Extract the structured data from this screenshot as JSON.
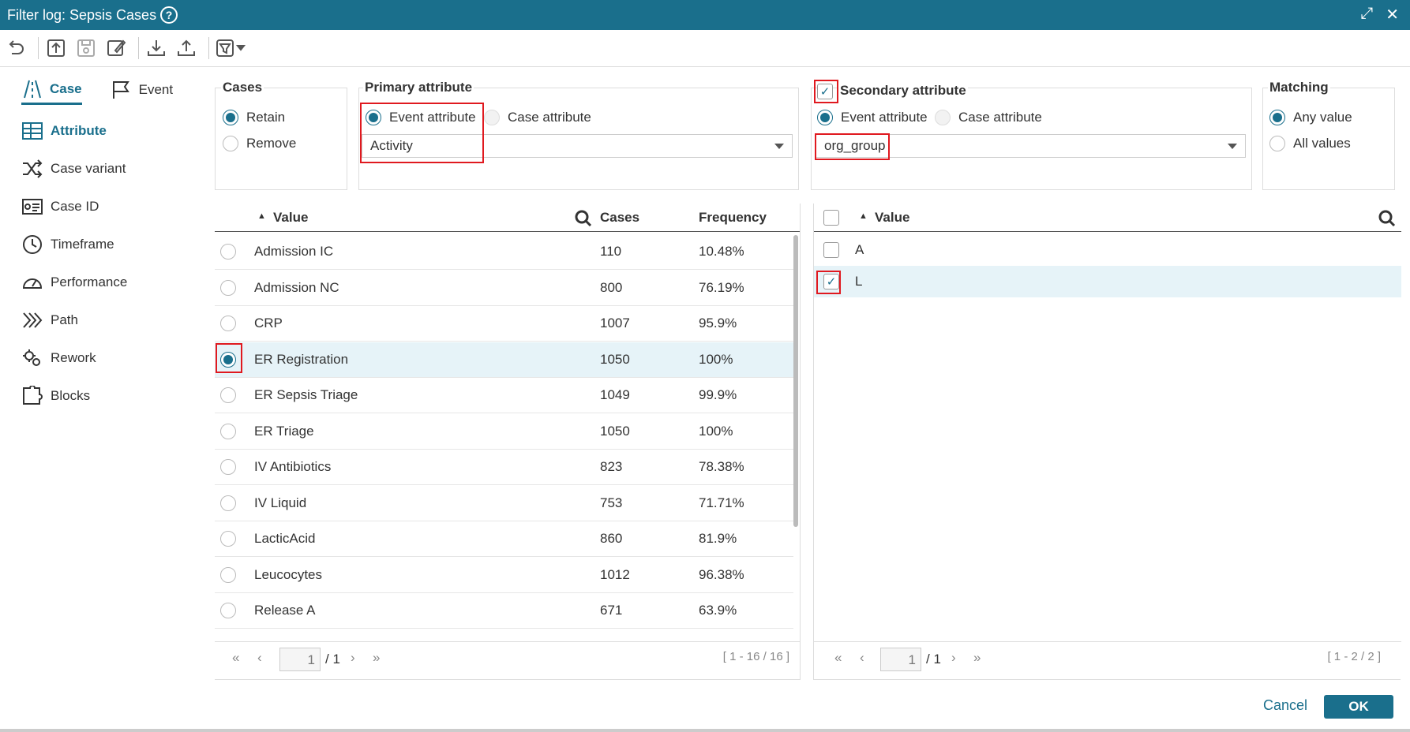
{
  "window": {
    "title": "Filter log: Sepsis Cases",
    "help": "?",
    "maximize": "⤢",
    "close": "✕"
  },
  "nav": {
    "tabs": [
      {
        "label": "Case"
      },
      {
        "label": "Event"
      }
    ],
    "items": [
      {
        "label": "Attribute"
      },
      {
        "label": "Case variant"
      },
      {
        "label": "Case ID"
      },
      {
        "label": "Timeframe"
      },
      {
        "label": "Performance"
      },
      {
        "label": "Path"
      },
      {
        "label": "Rework"
      },
      {
        "label": "Blocks"
      }
    ]
  },
  "cases": {
    "title": "Cases",
    "retain": "Retain",
    "remove": "Remove",
    "selected": "Retain"
  },
  "primary": {
    "title": "Primary attribute",
    "event_attr": "Event attribute",
    "case_attr": "Case attribute",
    "selected_type": "Event attribute",
    "value": "Activity"
  },
  "secondary": {
    "title": "Secondary attribute",
    "enabled": true,
    "event_attr": "Event attribute",
    "case_attr": "Case attribute",
    "selected_type": "Event attribute",
    "value": "org_group"
  },
  "matching": {
    "title": "Matching",
    "any": "Any value",
    "all": "All values",
    "selected": "Any value"
  },
  "primary_table": {
    "columns": {
      "value": "Value",
      "cases": "Cases",
      "frequency": "Frequency"
    },
    "rows": [
      {
        "value": "Admission IC",
        "cases": "110",
        "frequency": "10.48%"
      },
      {
        "value": "Admission NC",
        "cases": "800",
        "frequency": "76.19%"
      },
      {
        "value": "CRP",
        "cases": "1007",
        "frequency": "95.9%"
      },
      {
        "value": "ER Registration",
        "cases": "1050",
        "frequency": "100%",
        "selected": true
      },
      {
        "value": "ER Sepsis Triage",
        "cases": "1049",
        "frequency": "99.9%"
      },
      {
        "value": "ER Triage",
        "cases": "1050",
        "frequency": "100%"
      },
      {
        "value": "IV Antibiotics",
        "cases": "823",
        "frequency": "78.38%"
      },
      {
        "value": "IV Liquid",
        "cases": "753",
        "frequency": "71.71%"
      },
      {
        "value": "LacticAcid",
        "cases": "860",
        "frequency": "81.9%"
      },
      {
        "value": "Leucocytes",
        "cases": "1012",
        "frequency": "96.38%"
      },
      {
        "value": "Release A",
        "cases": "671",
        "frequency": "63.9%"
      }
    ],
    "pager": {
      "page": "1",
      "of": "/ 1",
      "range": "[ 1 - 16 / 16 ]"
    }
  },
  "secondary_table": {
    "columns": {
      "value": "Value"
    },
    "rows": [
      {
        "value": "A",
        "checked": false
      },
      {
        "value": "L",
        "checked": true
      }
    ],
    "pager": {
      "page": "1",
      "of": "/ 1",
      "range": "[ 1 - 2 / 2 ]"
    }
  },
  "footer": {
    "cancel": "Cancel",
    "ok": "OK"
  },
  "colors": {
    "accent": "#1a6f8c",
    "highlight": "#e0191f",
    "selected_row": "#e6f3f8"
  }
}
